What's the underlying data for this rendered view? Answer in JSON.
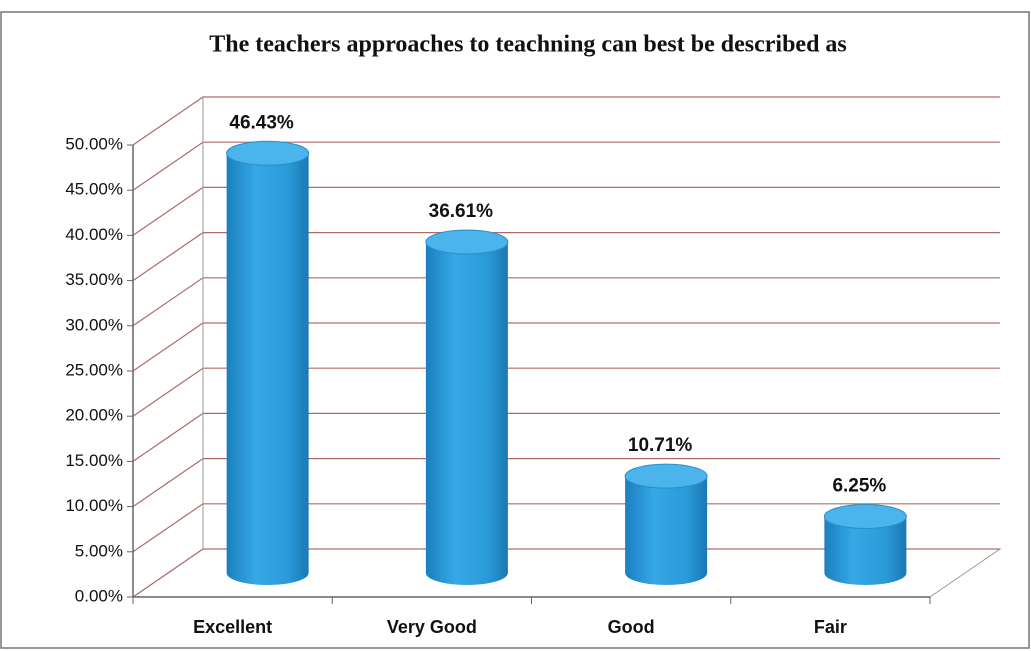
{
  "chart_data": {
    "type": "bar3d",
    "title": "The teachers approaches to teachning can best be described as",
    "categories": [
      "Excellent",
      "Very Good",
      "Good",
      "Fair"
    ],
    "values": [
      46.43,
      36.61,
      10.71,
      6.25
    ],
    "value_labels": [
      "46.43%",
      "36.61%",
      "10.71%",
      "6.25%"
    ],
    "color": "#2a9ad8",
    "ylim": [
      0,
      50
    ],
    "yticks": [
      {
        "value": 0,
        "label": "0.00%"
      },
      {
        "value": 5,
        "label": "5.00%"
      },
      {
        "value": 10,
        "label": "10.00%"
      },
      {
        "value": 15,
        "label": "15.00%"
      },
      {
        "value": 20,
        "label": "20.00%"
      },
      {
        "value": 25,
        "label": "25.00%"
      },
      {
        "value": 30,
        "label": "30.00%"
      },
      {
        "value": 35,
        "label": "35.00%"
      },
      {
        "value": 40,
        "label": "40.00%"
      },
      {
        "value": 45,
        "label": "45.00%"
      },
      {
        "value": 50,
        "label": "50.00%"
      }
    ],
    "grid": true
  }
}
